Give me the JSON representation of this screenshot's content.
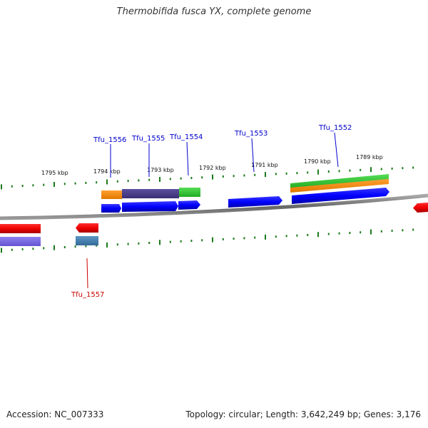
{
  "title": "Thermobifida fusca YX, complete genome",
  "footer": {
    "accession": "Accession: NC_007333",
    "topology": "Topology: circular; Length: 3,642,249 bp; Genes: 3,176"
  },
  "scale_labels": [
    "1795 kbp",
    "1794 kbp",
    "1793 kbp",
    "1792 kbp",
    "1791 kbp",
    "1790 kbp",
    "1789 kbp"
  ],
  "genes": [
    {
      "label": "Tfu_1556",
      "strand": "forward",
      "color": "#0000cc"
    },
    {
      "label": "Tfu_1555",
      "strand": "forward",
      "color": "#0000cc"
    },
    {
      "label": "Tfu_1554",
      "strand": "forward",
      "color": "#0000cc"
    },
    {
      "label": "Tfu_1553",
      "strand": "forward",
      "color": "#0000cc"
    },
    {
      "label": "Tfu_1552",
      "strand": "forward",
      "color": "#0000cc"
    },
    {
      "label": "Tfu_1557",
      "strand": "reverse",
      "color": "#cc0000"
    }
  ],
  "colors": {
    "forward_gene": "#0000ff",
    "reverse_gene": "#ee0000",
    "orange_feature": "#ff8c00",
    "purple_feature": "#4b3f8f",
    "green_feature": "#33cc33",
    "lavender_feature": "#7b68ee",
    "steelblue_feature": "#4682b4",
    "backbone": "#777777",
    "ticks": "#1a7a1a"
  }
}
